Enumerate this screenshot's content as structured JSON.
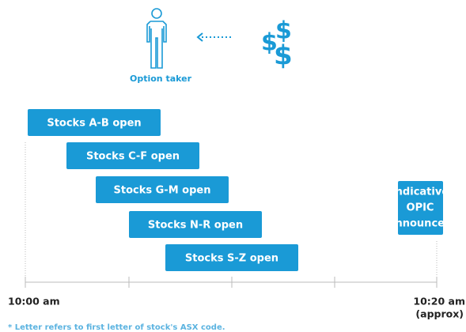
{
  "actor": {
    "label": "Option taker"
  },
  "dollar_signs": [
    "$",
    "$"
  ],
  "phases": [
    "Stocks A-B open",
    "Stocks C-F open",
    "Stocks G-M open",
    "Stocks N-R open",
    "Stocks S-Z open"
  ],
  "outcome": {
    "lines": [
      "Indicative",
      "OPIC",
      "announced"
    ]
  },
  "axis": {
    "start": "10:00 am",
    "end": "10:20 am",
    "end_note": "(approx)"
  },
  "footnote": "* Letter refers to first letter of stock's ASX code."
}
